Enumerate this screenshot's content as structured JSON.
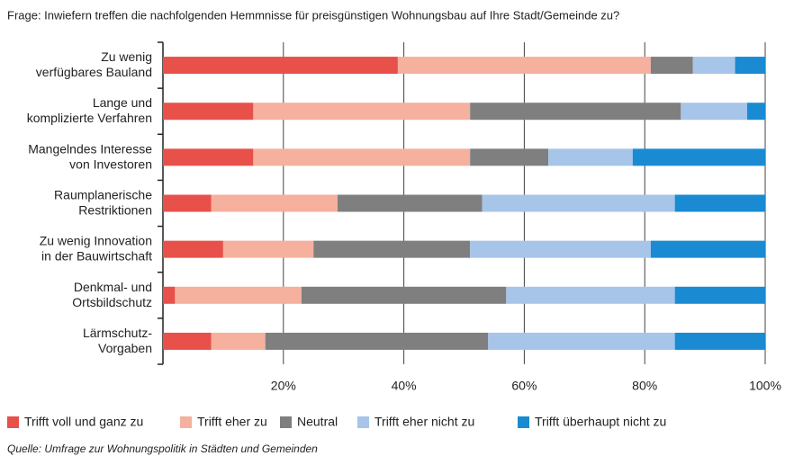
{
  "chart_data": {
    "type": "stacked-barh",
    "title": "Frage: Inwiefern treffen die nachfolgenden Hemmnisse für preisgünstigen Wohnungsbau auf Ihre Stadt/Gemeinde zu?",
    "source": "Quelle: Umfrage zur Wohnungspolitik in Städten und Gemeinden",
    "categories": [
      "Zu wenig\nverfügbares Bauland",
      "Lange und\nkomplizierte Verfahren",
      "Mangelndes Interesse\nvon Investoren",
      "Raumplanerische\nRestriktionen",
      "Zu wenig Innovation\nin der Bauwirtschaft",
      "Denkmal- und\nOrtsbildschutz",
      "Lärmschutz-\nVorgaben"
    ],
    "series": [
      {
        "name": "Trifft voll und ganz zu",
        "color": "#e8504a",
        "values": [
          39,
          15,
          15,
          8,
          10,
          2,
          8
        ]
      },
      {
        "name": "Trifft eher zu",
        "color": "#f5b09e",
        "values": [
          42,
          36,
          36,
          21,
          15,
          21,
          9
        ]
      },
      {
        "name": "Neutral",
        "color": "#7f7f7f",
        "values": [
          7,
          35,
          13,
          24,
          26,
          34,
          37
        ]
      },
      {
        "name": "Trifft eher nicht zu",
        "color": "#a6c5e9",
        "values": [
          7,
          11,
          14,
          32,
          30,
          28,
          31
        ]
      },
      {
        "name": "Trifft überhaupt nicht zu",
        "color": "#1a8bd2",
        "values": [
          5,
          3,
          22,
          15,
          19,
          15,
          15
        ]
      }
    ],
    "xlim": [
      0,
      100
    ],
    "xticks": [
      {
        "value": 20,
        "label": "20%"
      },
      {
        "value": 40,
        "label": "40%"
      },
      {
        "value": 60,
        "label": "60%"
      },
      {
        "value": 80,
        "label": "80%"
      },
      {
        "value": 100,
        "label": "100%"
      }
    ],
    "grid": true,
    "legend": "bottom"
  }
}
